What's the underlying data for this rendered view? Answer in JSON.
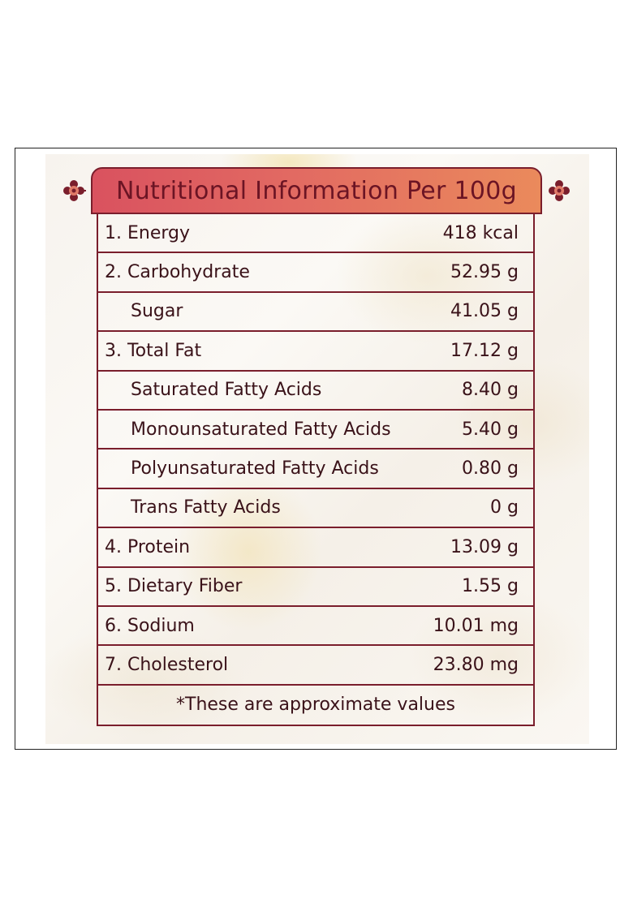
{
  "title": "Nutritional Information Per 100g",
  "rows": [
    {
      "label": "1. Energy",
      "value": "418 kcal"
    },
    {
      "label": "2. Carbohydrate",
      "value": "52.95 g"
    },
    {
      "label": "Sugar",
      "value": "41.05 g"
    },
    {
      "label": "3. Total Fat",
      "value": "17.12 g"
    },
    {
      "label": "Saturated Fatty Acids",
      "value": "8.40 g"
    },
    {
      "label": "Monounsaturated Fatty Acids",
      "value": "5.40 g"
    },
    {
      "label": "Polyunsaturated Fatty Acids",
      "value": "0.80 g"
    },
    {
      "label": "Trans Fatty Acids",
      "value": "0 g"
    },
    {
      "label": "4. Protein",
      "value": "13.09 g"
    },
    {
      "label": "5. Dietary Fiber",
      "value": "1.55 g"
    },
    {
      "label": "6. Sodium",
      "value": "10.01 mg"
    },
    {
      "label": "7. Cholesterol",
      "value": "23.80 mg"
    }
  ],
  "note": "*These are approximate values",
  "colors": {
    "border": "#7a1e2c",
    "banner_left": "#d9525f",
    "banner_right": "#ea8a5c",
    "text": "#3a1219"
  },
  "icons": {
    "left_ornament": "flower-ornament-icon",
    "right_ornament": "flower-ornament-icon"
  }
}
